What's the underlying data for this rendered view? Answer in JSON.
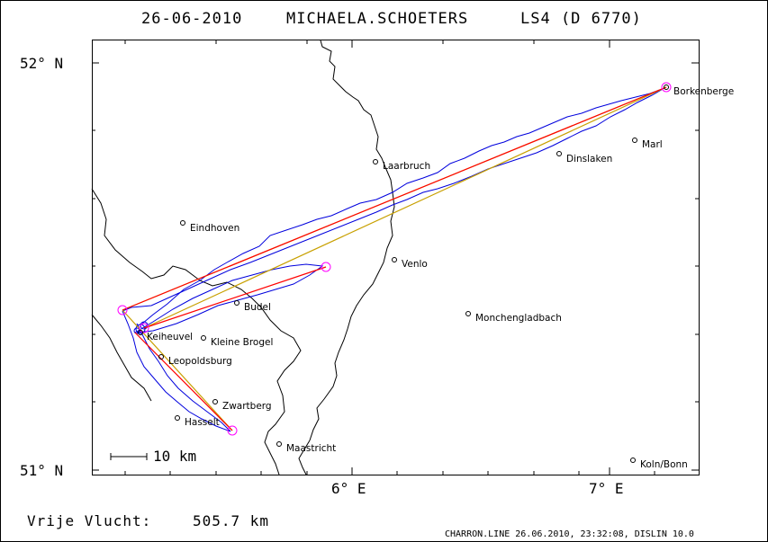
{
  "title": {
    "date": "26-06-2010",
    "pilot": "MICHAELA.SCHOETERS",
    "glider": "LS4 (D 6770)"
  },
  "axes": {
    "lat_top": "52° N",
    "lat_bottom": "51° N",
    "lon_6": "6° E",
    "lon_7": "7° E"
  },
  "scale_bar_label": "10 km",
  "distance": {
    "label": "Vrije Vlucht:",
    "value": "505.7 km"
  },
  "credit": "CHARRON.LINE 26.06.2010, 23:32:08, DISLIN 10.0",
  "cities": [
    {
      "name": "Borkenberge"
    },
    {
      "name": "Marl"
    },
    {
      "name": "Dinslaken"
    },
    {
      "name": "Laarbruch"
    },
    {
      "name": "Eindhoven"
    },
    {
      "name": "Venlo"
    },
    {
      "name": "Budel"
    },
    {
      "name": "Monchengladbach"
    },
    {
      "name": "Keiheuvel"
    },
    {
      "name": "Kleine Brogel"
    },
    {
      "name": "Leopoldsburg"
    },
    {
      "name": "Zwartberg"
    },
    {
      "name": "Hasselt"
    },
    {
      "name": "Maastricht"
    },
    {
      "name": "Koln/Bonn"
    }
  ],
  "colors": {
    "track": "#0000dd",
    "leg": "#ff0000",
    "leg_alt": "#c8a000",
    "turnpoint": "#ff00ff",
    "border": "#000000"
  }
}
